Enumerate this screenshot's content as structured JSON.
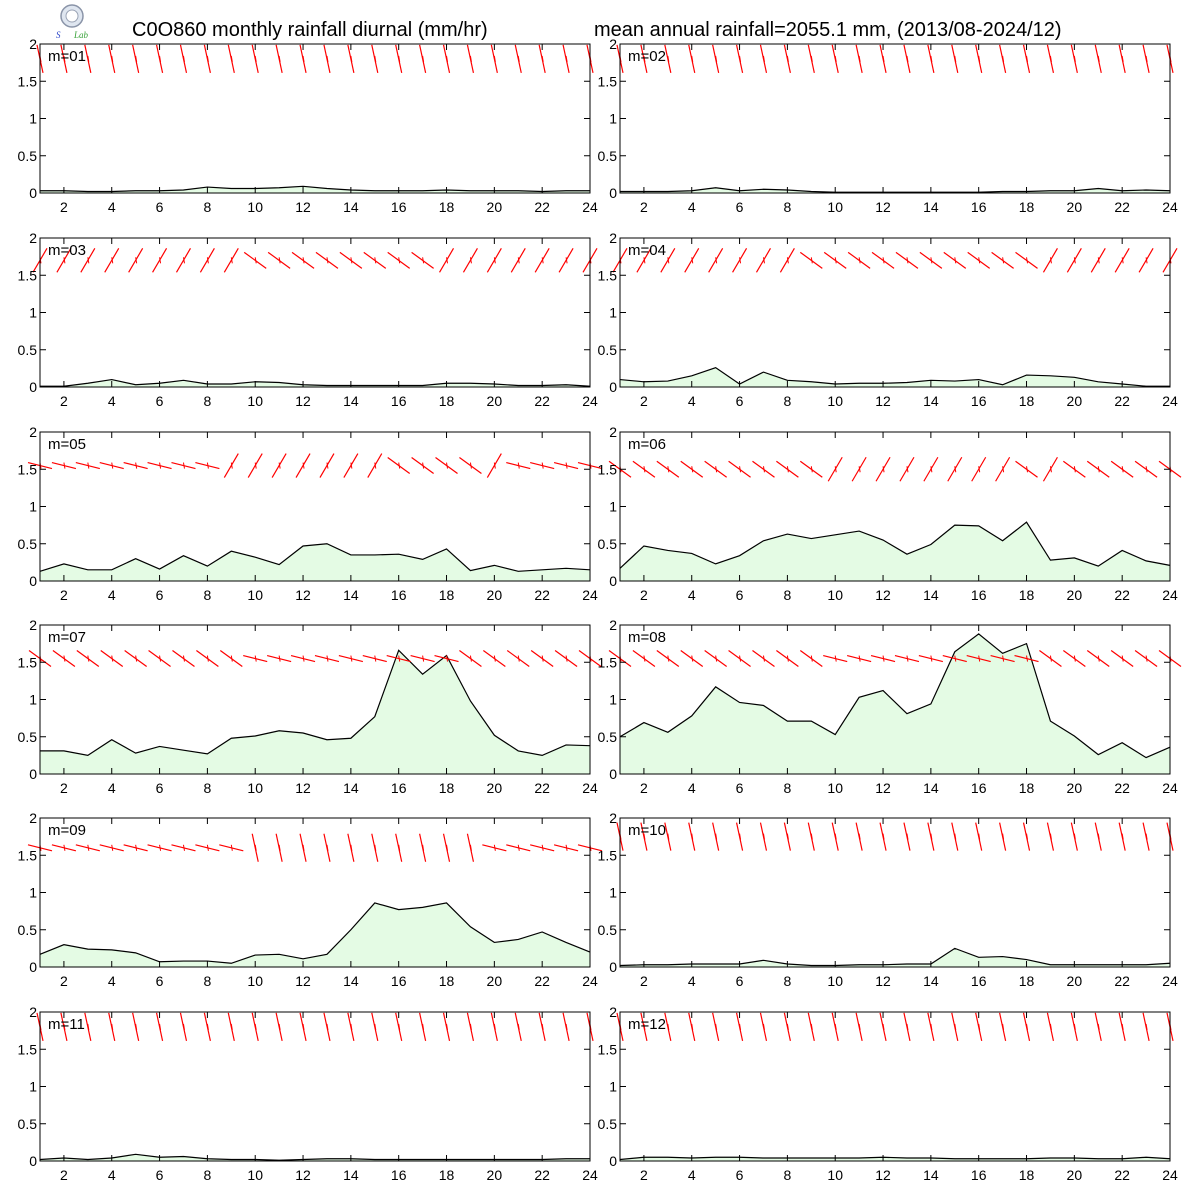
{
  "title_left": "C0O860 monthly rainfall diurnal (mm/hr)",
  "title_right": "mean annual rainfall=2055.1 mm, (2013/08-2024/12)",
  "logo_text": "Lab",
  "colors": {
    "fill": "#e4fbe4",
    "line": "#000000",
    "barb": "#ff0000",
    "frame": "#000000"
  },
  "chart_data": {
    "type": "area",
    "x": [
      1,
      2,
      3,
      4,
      5,
      6,
      7,
      8,
      9,
      10,
      11,
      12,
      13,
      14,
      15,
      16,
      17,
      18,
      19,
      20,
      21,
      22,
      23,
      24
    ],
    "xticks": [
      "2",
      "4",
      "6",
      "8",
      "10",
      "12",
      "14",
      "16",
      "18",
      "20",
      "22",
      "24"
    ],
    "yticks": [
      "0",
      "0.5",
      "1",
      "1.5",
      "2"
    ],
    "xlim": [
      1,
      24
    ],
    "ylim": [
      0,
      2
    ],
    "panels": [
      {
        "label": "m=01",
        "values": [
          0.03,
          0.03,
          0.02,
          0.02,
          0.03,
          0.03,
          0.04,
          0.08,
          0.06,
          0.06,
          0.07,
          0.09,
          0.06,
          0.04,
          0.03,
          0.03,
          0.03,
          0.04,
          0.03,
          0.03,
          0.03,
          0.02,
          0.03,
          0.03
        ]
      },
      {
        "label": "m=02",
        "values": [
          0.02,
          0.02,
          0.02,
          0.03,
          0.07,
          0.03,
          0.05,
          0.04,
          0.02,
          0.01,
          0.01,
          0.01,
          0.01,
          0.01,
          0.01,
          0.01,
          0.02,
          0.02,
          0.03,
          0.03,
          0.06,
          0.03,
          0.04,
          0.03
        ]
      },
      {
        "label": "m=03",
        "values": [
          0.01,
          0.01,
          0.05,
          0.1,
          0.03,
          0.05,
          0.09,
          0.04,
          0.04,
          0.07,
          0.06,
          0.03,
          0.02,
          0.02,
          0.02,
          0.02,
          0.02,
          0.05,
          0.05,
          0.04,
          0.02,
          0.02,
          0.03,
          0.01
        ]
      },
      {
        "label": "m=04",
        "values": [
          0.1,
          0.07,
          0.08,
          0.15,
          0.26,
          0.04,
          0.2,
          0.09,
          0.07,
          0.04,
          0.05,
          0.05,
          0.06,
          0.09,
          0.08,
          0.1,
          0.03,
          0.16,
          0.15,
          0.13,
          0.07,
          0.04,
          0.01,
          0.01
        ]
      },
      {
        "label": "m=05",
        "values": [
          0.13,
          0.23,
          0.15,
          0.15,
          0.3,
          0.16,
          0.34,
          0.2,
          0.4,
          0.32,
          0.22,
          0.47,
          0.5,
          0.35,
          0.35,
          0.36,
          0.29,
          0.43,
          0.14,
          0.21,
          0.13,
          0.15,
          0.17,
          0.15
        ]
      },
      {
        "label": "m=06",
        "values": [
          0.17,
          0.47,
          0.41,
          0.37,
          0.23,
          0.34,
          0.54,
          0.63,
          0.57,
          0.62,
          0.67,
          0.55,
          0.36,
          0.49,
          0.75,
          0.74,
          0.54,
          0.79,
          0.28,
          0.31,
          0.2,
          0.41,
          0.27,
          0.21
        ]
      },
      {
        "label": "m=07",
        "values": [
          0.31,
          0.31,
          0.25,
          0.46,
          0.28,
          0.37,
          0.32,
          0.27,
          0.48,
          0.51,
          0.58,
          0.55,
          0.46,
          0.48,
          0.77,
          1.66,
          1.34,
          1.59,
          0.98,
          0.52,
          0.31,
          0.25,
          0.39,
          0.38
        ]
      },
      {
        "label": "m=08",
        "values": [
          0.5,
          0.69,
          0.56,
          0.78,
          1.17,
          0.96,
          0.92,
          0.71,
          0.71,
          0.53,
          1.03,
          1.12,
          0.81,
          0.94,
          1.64,
          1.88,
          1.62,
          1.75,
          0.71,
          0.51,
          0.26,
          0.42,
          0.22,
          0.36
        ]
      },
      {
        "label": "m=09",
        "values": [
          0.17,
          0.3,
          0.24,
          0.23,
          0.19,
          0.07,
          0.08,
          0.08,
          0.05,
          0.16,
          0.17,
          0.11,
          0.17,
          0.5,
          0.86,
          0.77,
          0.8,
          0.86,
          0.54,
          0.33,
          0.37,
          0.47,
          0.33,
          0.2
        ]
      },
      {
        "label": "m=10",
        "values": [
          0.02,
          0.03,
          0.03,
          0.04,
          0.04,
          0.04,
          0.09,
          0.04,
          0.02,
          0.02,
          0.03,
          0.03,
          0.04,
          0.04,
          0.25,
          0.13,
          0.14,
          0.1,
          0.03,
          0.03,
          0.03,
          0.03,
          0.03,
          0.05
        ]
      },
      {
        "label": "m=11",
        "values": [
          0.02,
          0.04,
          0.02,
          0.04,
          0.09,
          0.05,
          0.06,
          0.03,
          0.02,
          0.02,
          0.01,
          0.02,
          0.03,
          0.03,
          0.02,
          0.02,
          0.02,
          0.02,
          0.02,
          0.02,
          0.02,
          0.02,
          0.03,
          0.03
        ]
      },
      {
        "label": "m=12",
        "values": [
          0.02,
          0.05,
          0.05,
          0.04,
          0.05,
          0.05,
          0.04,
          0.04,
          0.04,
          0.04,
          0.04,
          0.05,
          0.04,
          0.04,
          0.03,
          0.03,
          0.03,
          0.03,
          0.04,
          0.04,
          0.03,
          0.03,
          0.05,
          0.03
        ]
      }
    ],
    "wind_barbs": [
      {
        "dirs": [
          -1,
          -1,
          -1,
          -1,
          -1,
          -1,
          -1,
          -1,
          -1,
          -1,
          -1,
          -1,
          -1,
          -1,
          -1,
          -1,
          -1,
          -1,
          -1,
          -1,
          -1,
          -1,
          -1,
          -1
        ],
        "level": 1.8
      },
      {
        "dirs": [
          -1,
          -1,
          -1,
          -1,
          -1,
          -1,
          -1,
          -1,
          -1,
          -1,
          -1,
          -1,
          -1,
          -1,
          -1,
          -1,
          -1,
          -1,
          -1,
          -1,
          -1,
          -1,
          -1,
          -1
        ],
        "level": 1.8
      },
      {
        "dirs": [
          1,
          1,
          1,
          1,
          1,
          1,
          1,
          1,
          1,
          2,
          2,
          2,
          2,
          2,
          2,
          2,
          2,
          1,
          1,
          1,
          1,
          1,
          1,
          1
        ],
        "level": 1.7
      },
      {
        "dirs": [
          1,
          1,
          1,
          1,
          1,
          1,
          1,
          1,
          2,
          2,
          2,
          2,
          2,
          2,
          2,
          2,
          2,
          2,
          1,
          1,
          1,
          1,
          1,
          1
        ],
        "level": 1.7
      },
      {
        "dirs": [
          0,
          0,
          0,
          0,
          0,
          0,
          0,
          0,
          1,
          1,
          1,
          1,
          1,
          1,
          1,
          2,
          2,
          2,
          2,
          1,
          0,
          0,
          0,
          0
        ],
        "level": 1.55
      },
      {
        "dirs": [
          2,
          2,
          2,
          2,
          2,
          2,
          2,
          2,
          2,
          1,
          1,
          1,
          1,
          1,
          1,
          1,
          1,
          2,
          1,
          2,
          2,
          2,
          2,
          2
        ],
        "level": 1.5
      },
      {
        "dirs": [
          2,
          2,
          2,
          2,
          2,
          2,
          2,
          2,
          2,
          0,
          0,
          0,
          0,
          0,
          0,
          0,
          0,
          0,
          2,
          2,
          2,
          2,
          2,
          2
        ],
        "level": 1.55
      },
      {
        "dirs": [
          2,
          2,
          2,
          2,
          2,
          2,
          2,
          2,
          2,
          0,
          0,
          0,
          0,
          0,
          0,
          0,
          0,
          0,
          2,
          2,
          2,
          2,
          2,
          2
        ],
        "level": 1.55
      },
      {
        "dirs": [
          0,
          0,
          0,
          0,
          0,
          0,
          0,
          0,
          0,
          -1,
          -1,
          -1,
          -1,
          -1,
          -1,
          -1,
          -1,
          -1,
          -1,
          0,
          0,
          0,
          0,
          0
        ],
        "level": 1.6
      },
      {
        "dirs": [
          -1,
          -1,
          -1,
          -1,
          -1,
          -1,
          -1,
          -1,
          -1,
          -1,
          -1,
          -1,
          -1,
          -1,
          -1,
          -1,
          -1,
          -1,
          -1,
          -1,
          -1,
          -1,
          -1,
          -1
        ],
        "level": 1.75
      },
      {
        "dirs": [
          -1,
          -1,
          -1,
          -1,
          -1,
          -1,
          -1,
          -1,
          -1,
          -1,
          -1,
          -1,
          -1,
          -1,
          -1,
          -1,
          -1,
          -1,
          -1,
          -1,
          -1,
          -1,
          -1,
          -1
        ],
        "level": 1.8
      },
      {
        "dirs": [
          -1,
          -1,
          -1,
          -1,
          -1,
          -1,
          -1,
          -1,
          -1,
          -1,
          -1,
          -1,
          -1,
          -1,
          -1,
          -1,
          -1,
          -1,
          -1,
          -1,
          -1,
          -1,
          -1,
          -1
        ],
        "level": 1.8
      }
    ]
  }
}
